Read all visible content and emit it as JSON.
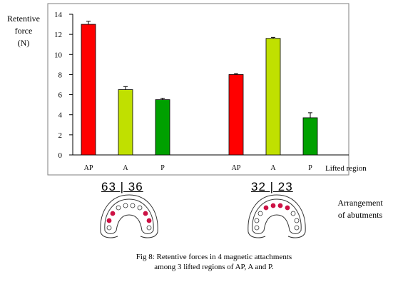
{
  "chart_data": {
    "type": "bar",
    "ylabel_lines": [
      "Retentive",
      "force",
      "(N)"
    ],
    "xlabel": "Lifted region",
    "ylim": [
      0,
      14
    ],
    "yticks": [
      0,
      2,
      4,
      6,
      8,
      10,
      12,
      14
    ],
    "grid": false,
    "groups": [
      {
        "arrangement": "63 | 36",
        "bars": [
          {
            "category": "AP",
            "value": 13.0,
            "error": 0.3,
            "color": "#ff0000"
          },
          {
            "category": "A",
            "value": 6.5,
            "error": 0.3,
            "color": "#c0e000"
          },
          {
            "category": "P",
            "value": 5.5,
            "error": 0.15,
            "color": "#00a000"
          }
        ]
      },
      {
        "arrangement": "32 | 23",
        "bars": [
          {
            "category": "AP",
            "value": 8.0,
            "error": 0.1,
            "color": "#ff0000"
          },
          {
            "category": "A",
            "value": 11.6,
            "error": 0.1,
            "color": "#c0e000"
          },
          {
            "category": "P",
            "value": 3.7,
            "error": 0.5,
            "color": "#00a000"
          }
        ]
      }
    ]
  },
  "arrangement_label_lines": [
    "Arrangement",
    "of abutments"
  ],
  "caption_lines": [
    "Fig 8: Retentive forces in 4 magnetic attachments",
    "among 3 lifted regions of AP, A and P."
  ],
  "arch_diagrams": [
    {
      "name": "arch-63-36",
      "filled_color": "#cc1144"
    },
    {
      "name": "arch-32-23",
      "filled_color": "#cc1144"
    }
  ]
}
